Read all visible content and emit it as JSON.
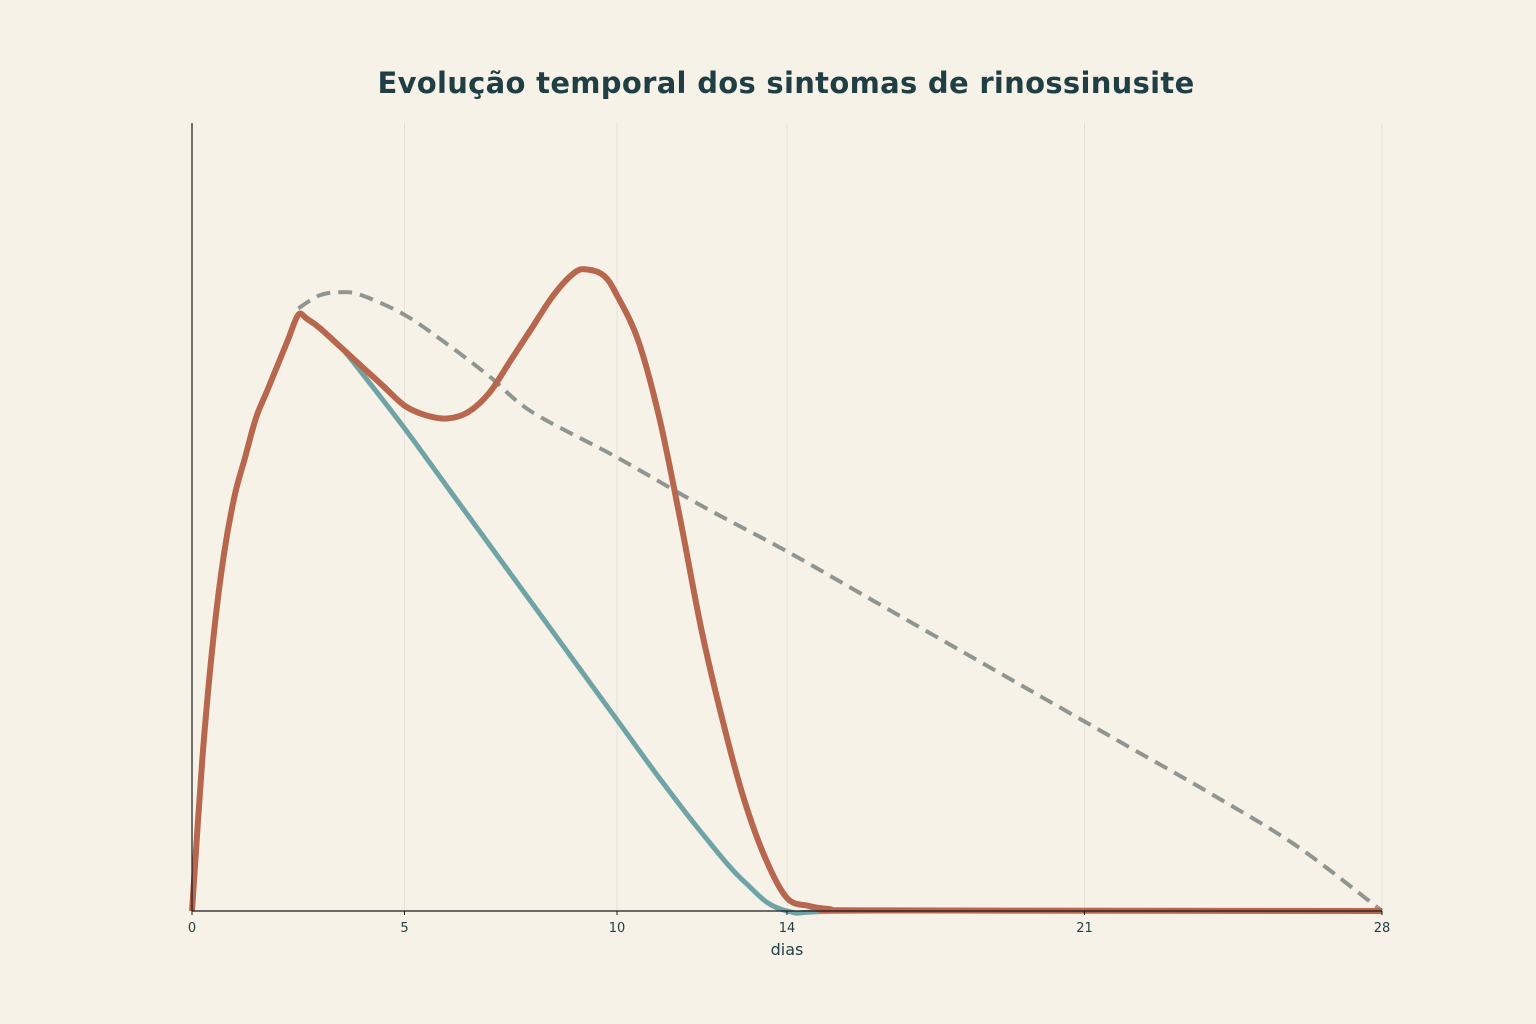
{
  "chart_data": {
    "type": "line",
    "title": "Evolução temporal dos sintomas de rinossinusite",
    "xlabel": "dias",
    "ylabel": "",
    "xlim": [
      0,
      28
    ],
    "ylim": [
      0,
      1
    ],
    "x_ticks": [
      0,
      5,
      10,
      14,
      21,
      28
    ],
    "x_tick_labels": [
      "0",
      "5",
      "10",
      "14",
      "21",
      "28"
    ],
    "grid": "vertical at x ticks",
    "legend": "none",
    "series": [
      {
        "color": "#6fa3a6",
        "style": "solid",
        "points": [
          [
            0,
            0
          ],
          [
            0.25,
            0.24
          ],
          [
            0.5,
            0.42
          ],
          [
            0.75,
            0.55
          ],
          [
            1,
            0.64
          ],
          [
            1.25,
            0.7
          ],
          [
            1.5,
            0.76
          ],
          [
            1.75,
            0.8
          ],
          [
            2,
            0.84
          ],
          [
            2.25,
            0.88
          ],
          [
            2.5,
            0.92
          ],
          [
            2.7,
            0.914
          ],
          [
            3,
            0.9
          ],
          [
            3.5,
            0.87
          ],
          [
            4,
            0.83
          ],
          [
            5,
            0.745
          ],
          [
            6,
            0.655
          ],
          [
            7,
            0.565
          ],
          [
            8,
            0.475
          ],
          [
            9,
            0.385
          ],
          [
            10,
            0.295
          ],
          [
            11,
            0.205
          ],
          [
            12,
            0.12
          ],
          [
            13,
            0.045
          ],
          [
            14,
            0.0
          ],
          [
            16,
            0.0
          ],
          [
            28,
            0.0
          ]
        ]
      },
      {
        "color": "#8f9691",
        "style": "dashed",
        "points": [
          [
            2.5,
            0.93
          ],
          [
            3,
            0.95
          ],
          [
            3.5,
            0.955
          ],
          [
            4,
            0.95
          ],
          [
            5,
            0.92
          ],
          [
            6,
            0.875
          ],
          [
            7,
            0.825
          ],
          [
            8,
            0.77
          ],
          [
            10,
            0.7
          ],
          [
            12,
            0.625
          ],
          [
            14,
            0.555
          ],
          [
            16,
            0.48
          ],
          [
            18,
            0.405
          ],
          [
            20,
            0.33
          ],
          [
            22,
            0.255
          ],
          [
            24,
            0.18
          ],
          [
            26,
            0.1
          ],
          [
            28,
            0.0
          ]
        ]
      },
      {
        "color": "#b8674f",
        "style": "solid",
        "points": [
          [
            0,
            0
          ],
          [
            0.25,
            0.24
          ],
          [
            0.5,
            0.42
          ],
          [
            0.75,
            0.55
          ],
          [
            1,
            0.64
          ],
          [
            1.25,
            0.7
          ],
          [
            1.5,
            0.76
          ],
          [
            1.75,
            0.8
          ],
          [
            2,
            0.84
          ],
          [
            2.25,
            0.88
          ],
          [
            2.5,
            0.92
          ],
          [
            2.7,
            0.914
          ],
          [
            3,
            0.9
          ],
          [
            3.5,
            0.87
          ],
          [
            4,
            0.84
          ],
          [
            4.5,
            0.81
          ],
          [
            5,
            0.78
          ],
          [
            5.5,
            0.765
          ],
          [
            6,
            0.76
          ],
          [
            6.5,
            0.77
          ],
          [
            7,
            0.8
          ],
          [
            7.5,
            0.85
          ],
          [
            8,
            0.9
          ],
          [
            8.5,
            0.95
          ],
          [
            9,
            0.985
          ],
          [
            9.3,
            0.99
          ],
          [
            9.7,
            0.98
          ],
          [
            10,
            0.95
          ],
          [
            10.5,
            0.88
          ],
          [
            11,
            0.76
          ],
          [
            11.5,
            0.6
          ],
          [
            12,
            0.43
          ],
          [
            12.5,
            0.29
          ],
          [
            13,
            0.17
          ],
          [
            13.5,
            0.08
          ],
          [
            14,
            0.02
          ],
          [
            14.5,
            0.008
          ],
          [
            15,
            0.003
          ],
          [
            16,
            0.001
          ],
          [
            28,
            0.0
          ]
        ]
      }
    ]
  }
}
